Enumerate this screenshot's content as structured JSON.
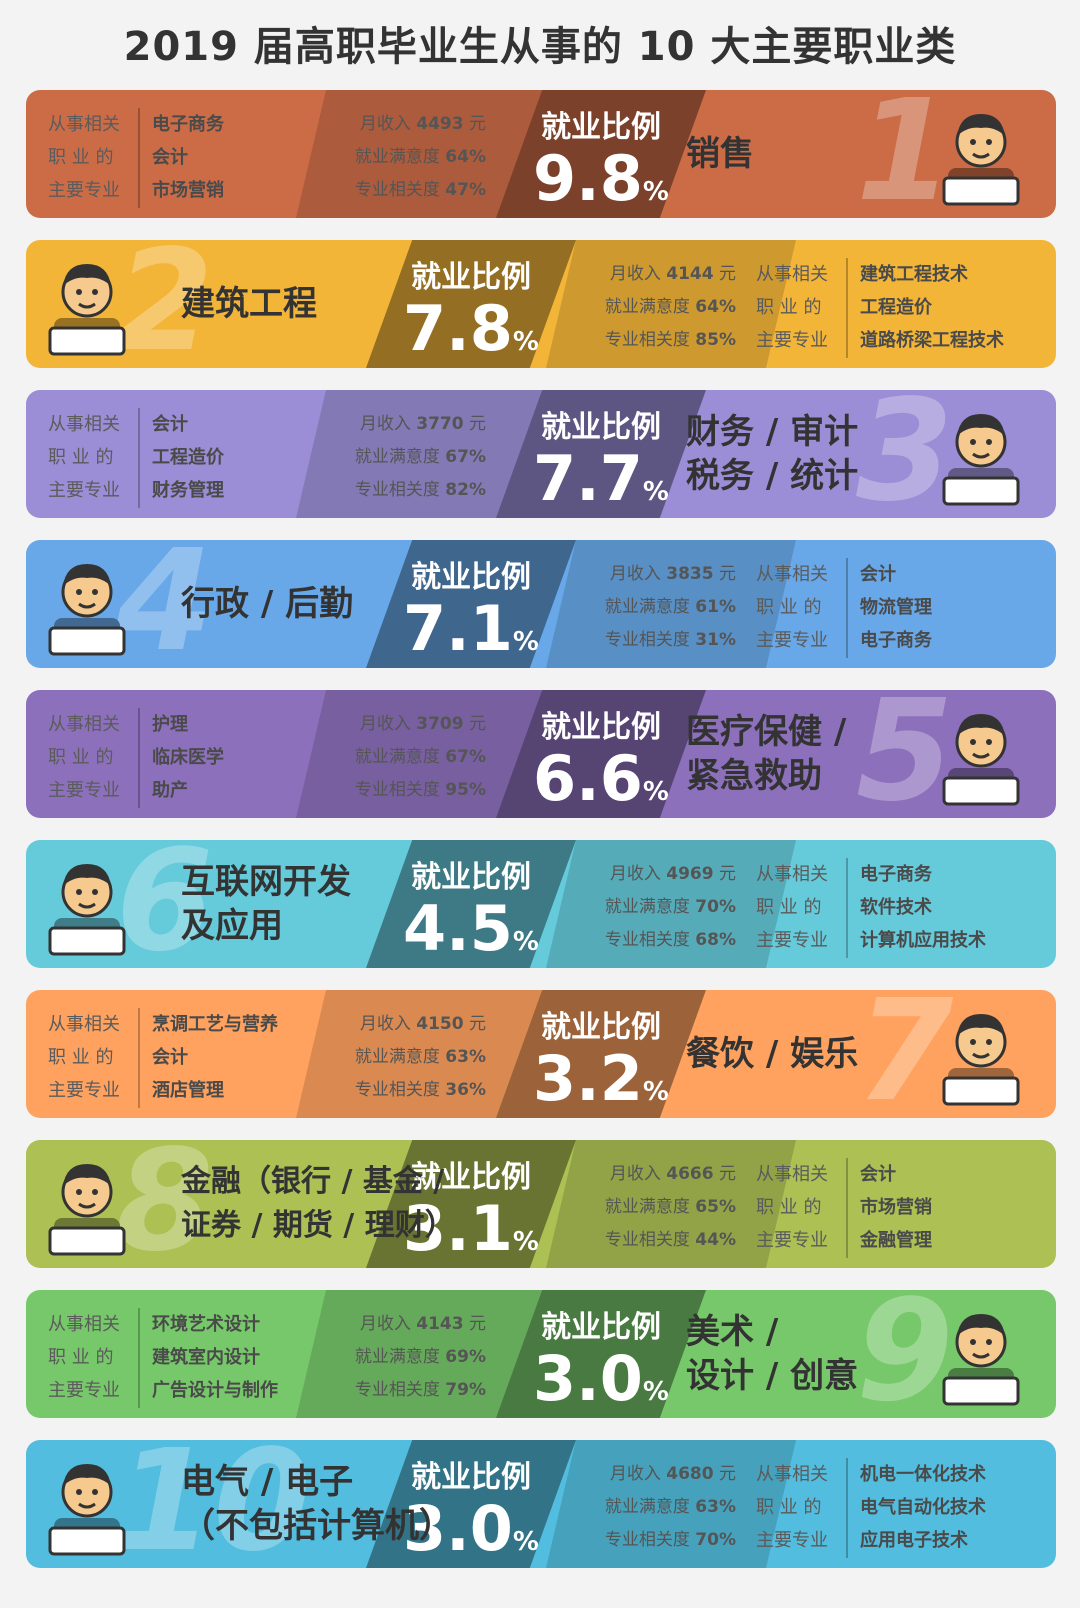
{
  "title": "2019 届高职毕业生从事的 10 大主要职业类",
  "labels": {
    "ratio_title": "就业比例",
    "major_label_lines": [
      "从事相关",
      "职 业 的",
      "主要专业"
    ],
    "income_prefix": "月收入",
    "income_suffix": "元",
    "satisfaction_prefix": "就业满意度",
    "relevance_prefix": "专业相关度",
    "percent": "%"
  },
  "colors": {
    "sales": "#b5603f",
    "construction": "#d9a232",
    "finance": "#8a7fbf",
    "admin": "#5d96cf",
    "medical": "#7e64a8",
    "internet": "#5ab4c3",
    "food": "#e59155",
    "banking": "#9aab4a",
    "art": "#6ab35f",
    "electrical": "#49a9c6"
  },
  "occupations": [
    {
      "rank": "1",
      "name_lines": [
        "销售"
      ],
      "ratio": "9.8",
      "income": "4493",
      "satisfaction": "64%",
      "relevance": "47%",
      "majors": [
        "电子商务",
        "会计",
        "市场营销"
      ]
    },
    {
      "rank": "2",
      "name_lines": [
        "建筑工程"
      ],
      "ratio": "7.8",
      "income": "4144",
      "satisfaction": "64%",
      "relevance": "85%",
      "majors": [
        "建筑工程技术",
        "工程造价",
        "道路桥梁工程技术"
      ]
    },
    {
      "rank": "3",
      "name_lines": [
        "财务 / 审计",
        "税务 / 统计"
      ],
      "ratio": "7.7",
      "income": "3770",
      "satisfaction": "67%",
      "relevance": "82%",
      "majors": [
        "会计",
        "工程造价",
        "财务管理"
      ]
    },
    {
      "rank": "4",
      "name_lines": [
        "行政 / 后勤"
      ],
      "ratio": "7.1",
      "income": "3835",
      "satisfaction": "61%",
      "relevance": "31%",
      "majors": [
        "会计",
        "物流管理",
        "电子商务"
      ]
    },
    {
      "rank": "5",
      "name_lines": [
        "医疗保健 /",
        "紧急救助"
      ],
      "ratio": "6.6",
      "income": "3709",
      "satisfaction": "67%",
      "relevance": "95%",
      "majors": [
        "护理",
        "临床医学",
        "助产"
      ]
    },
    {
      "rank": "6",
      "name_lines": [
        "互联网开发",
        "及应用"
      ],
      "ratio": "4.5",
      "income": "4969",
      "satisfaction": "70%",
      "relevance": "68%",
      "majors": [
        "电子商务",
        "软件技术",
        "计算机应用技术"
      ]
    },
    {
      "rank": "7",
      "name_lines": [
        "餐饮 / 娱乐"
      ],
      "ratio": "3.2",
      "income": "4150",
      "satisfaction": "63%",
      "relevance": "36%",
      "majors": [
        "烹调工艺与营养",
        "会计",
        "酒店管理"
      ]
    },
    {
      "rank": "8",
      "name_lines": [
        "金融（银行 / 基金 /",
        "证券 / 期货 / 理财）"
      ],
      "ratio": "3.1",
      "income": "4666",
      "satisfaction": "65%",
      "relevance": "44%",
      "majors": [
        "会计",
        "市场营销",
        "金融管理"
      ]
    },
    {
      "rank": "9",
      "name_lines": [
        "美术 /",
        "设计 / 创意"
      ],
      "ratio": "3.0",
      "income": "4143",
      "satisfaction": "69%",
      "relevance": "79%",
      "majors": [
        "环境艺术设计",
        "建筑室内设计",
        "广告设计与制作"
      ]
    },
    {
      "rank": "10",
      "name_lines": [
        "电气 / 电子",
        "（不包括计算机）"
      ],
      "ratio": "3.0",
      "income": "4680",
      "satisfaction": "63%",
      "relevance": "70%",
      "majors": [
        "机电一体化技术",
        "电气自动化技术",
        "应用电子技术"
      ]
    }
  ]
}
